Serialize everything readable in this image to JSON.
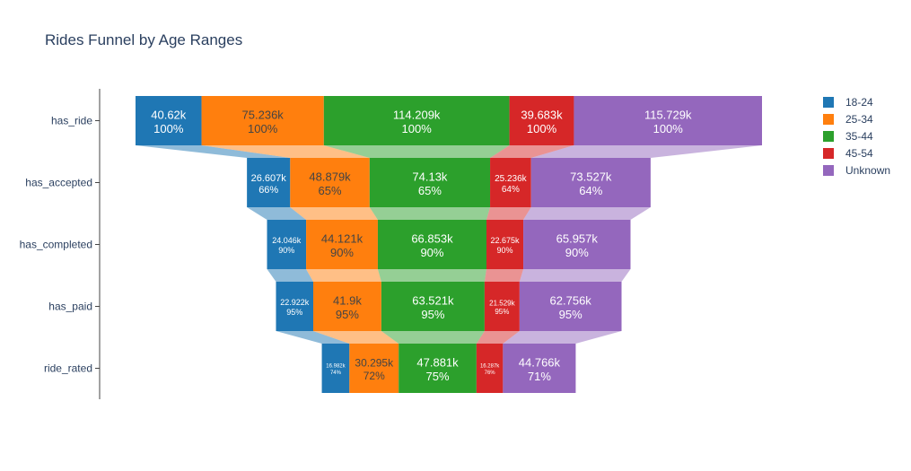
{
  "chart_data": {
    "type": "funnel",
    "title": "Rides Funnel by Age Ranges",
    "stages": [
      "has_ride",
      "has_accepted",
      "has_completed",
      "has_paid",
      "ride_rated"
    ],
    "series": [
      {
        "name": "18-24",
        "color": "#1f77b4",
        "values": [
          40620,
          26607,
          24046,
          22922,
          16982
        ],
        "labels": [
          "40.62k",
          "26.607k",
          "24.046k",
          "22.922k",
          "16.982k"
        ],
        "percents": [
          "100%",
          "66%",
          "90%",
          "95%",
          "74%"
        ]
      },
      {
        "name": "25-34",
        "color": "#ff7f0e",
        "values": [
          75236,
          48879,
          44121,
          41900,
          30295
        ],
        "labels": [
          "75.236k",
          "48.879k",
          "44.121k",
          "41.9k",
          "30.295k"
        ],
        "percents": [
          "100%",
          "65%",
          "90%",
          "95%",
          "72%"
        ]
      },
      {
        "name": "35-44",
        "color": "#2ca02c",
        "values": [
          114209,
          74130,
          66853,
          63521,
          47881
        ],
        "labels": [
          "114.209k",
          "74.13k",
          "66.853k",
          "63.521k",
          "47.881k"
        ],
        "percents": [
          "100%",
          "65%",
          "90%",
          "95%",
          "75%"
        ]
      },
      {
        "name": "45-54",
        "color": "#d62728",
        "values": [
          39683,
          25236,
          22675,
          21529,
          16287
        ],
        "labels": [
          "39.683k",
          "25.236k",
          "22.675k",
          "21.529k",
          "16.287k"
        ],
        "percents": [
          "100%",
          "64%",
          "90%",
          "95%",
          "76%"
        ]
      },
      {
        "name": "Unknown",
        "color": "#9467bd",
        "values": [
          115729,
          73527,
          65957,
          62756,
          44766
        ],
        "labels": [
          "115.729k",
          "73.527k",
          "65.957k",
          "62.756k",
          "44.766k"
        ],
        "percents": [
          "100%",
          "64%",
          "90%",
          "95%",
          "71%"
        ]
      }
    ],
    "legend_position": "top-right",
    "grid": false
  }
}
